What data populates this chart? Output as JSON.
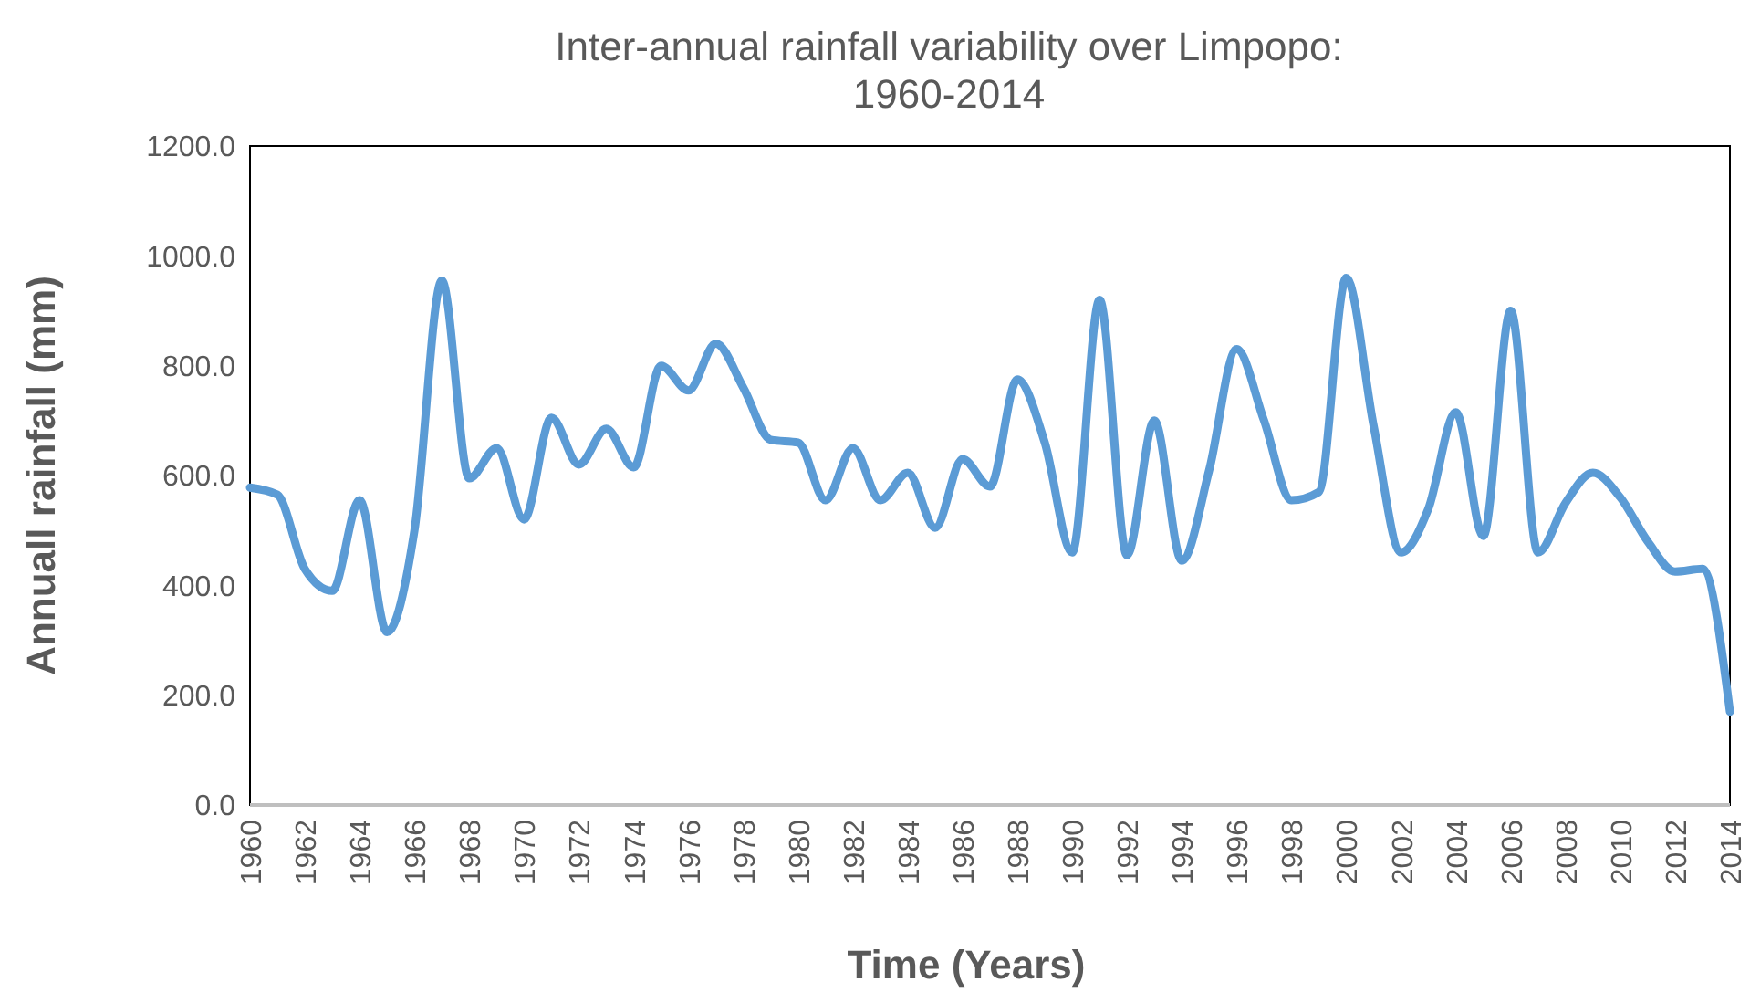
{
  "chart_data": {
    "type": "line",
    "title": "Inter-annual rainfall variability over Limpopo:\n1960-2014",
    "xlabel": "Time (Years)",
    "ylabel": "Annuall rainfall (mm)",
    "categories": [
      "1960",
      null,
      "1962",
      null,
      "1964",
      null,
      "1966",
      null,
      "1968",
      null,
      "1970",
      null,
      "1972",
      null,
      "1974",
      null,
      "1976",
      null,
      "1978",
      null,
      "1980",
      null,
      "1982",
      null,
      "1984",
      null,
      "1986",
      null,
      "1988",
      null,
      "1990",
      null,
      "1992",
      null,
      "1994",
      null,
      "1996",
      null,
      "1998",
      null,
      "2000",
      null,
      "2002",
      null,
      "2004",
      null,
      "2006",
      null,
      "2008",
      null,
      "2010",
      null,
      "2012",
      null,
      "2014"
    ],
    "series": [
      {
        "color": "#5b9bd5",
        "values": [
          578,
          565,
          430,
          390,
          555,
          315,
          500,
          955,
          595,
          650,
          520,
          705,
          620,
          685,
          615,
          800,
          755,
          840,
          760,
          665,
          660,
          555,
          650,
          555,
          605,
          505,
          630,
          580,
          775,
          660,
          460,
          920,
          455,
          700,
          445,
          610,
          830,
          700,
          555,
          570,
          960,
          690,
          460,
          540,
          715,
          490,
          900,
          460,
          550,
          605,
          560,
          480,
          425,
          430,
          170
        ]
      }
    ],
    "ylim": [
      0,
      1200
    ],
    "yticks": [
      {
        "value": 0,
        "label": "0.0"
      },
      {
        "value": 200,
        "label": "200.0"
      },
      {
        "value": 400,
        "label": "400.0"
      },
      {
        "value": 600,
        "label": "600.0"
      },
      {
        "value": 800,
        "label": "800.0"
      },
      {
        "value": 1000,
        "label": "1000.0"
      },
      {
        "value": 1200,
        "label": "1200.0"
      }
    ],
    "grid": false,
    "marker": "none",
    "line_style": "solid"
  }
}
